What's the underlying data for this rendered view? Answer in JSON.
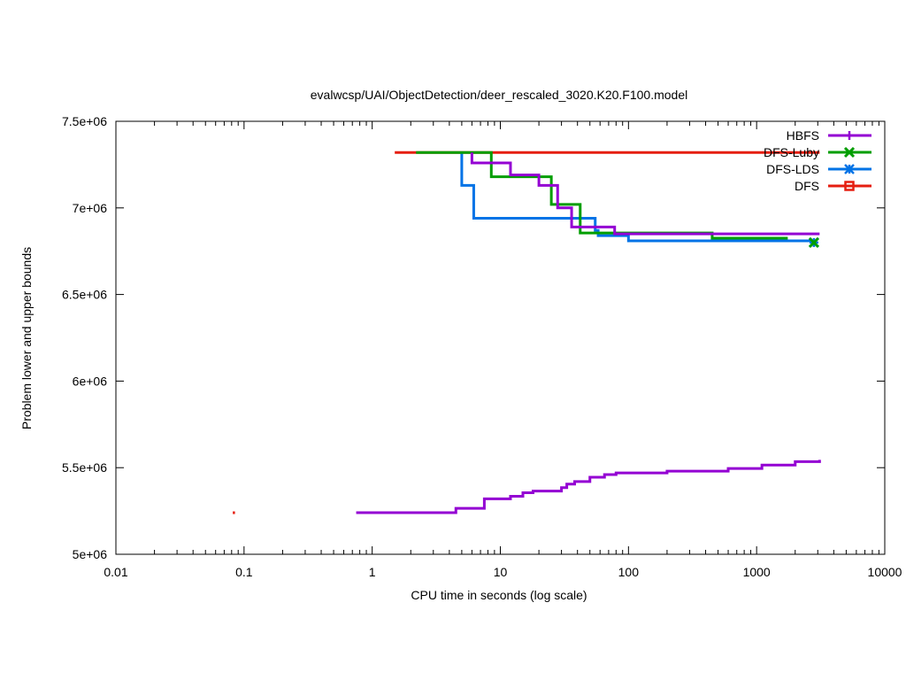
{
  "chart_data": {
    "type": "line",
    "title": "evalwcsp/UAI/ObjectDetection/deer_rescaled_3020.K20.F100.model",
    "xlabel": "CPU time in seconds (log scale)",
    "ylabel": "Problem lower and upper bounds",
    "xscale": "log",
    "xlim": [
      0.01,
      10000
    ],
    "ylim": [
      5000000,
      7500000
    ],
    "xticks": [
      0.01,
      0.1,
      1,
      10,
      100,
      1000,
      10000
    ],
    "xtick_labels": [
      "0.01",
      "0.1",
      "1",
      "10",
      "100",
      "1000",
      "10000"
    ],
    "yticks": [
      5000000,
      5500000,
      6000000,
      6500000,
      7000000,
      7500000
    ],
    "ytick_labels": [
      "5e+06",
      "5.5e+06",
      "6e+06",
      "6.5e+06",
      "7e+06",
      "7.5e+06"
    ],
    "grid": false,
    "legend_position": "top-right",
    "series": [
      {
        "name": "HBFS",
        "color": "#9400d3",
        "marker": "plus",
        "upper": [
          [
            6.0,
            7320000
          ],
          [
            6.0,
            7260000
          ],
          [
            12.0,
            7260000
          ],
          [
            12.0,
            7190000
          ],
          [
            20.0,
            7190000
          ],
          [
            20.0,
            7130000
          ],
          [
            28.0,
            7130000
          ],
          [
            28.0,
            7000000
          ],
          [
            36.0,
            7000000
          ],
          [
            36.0,
            6890000
          ],
          [
            78.0,
            6890000
          ],
          [
            78.0,
            6850000
          ],
          [
            3100,
            6850000
          ]
        ],
        "lower": [
          [
            0.75,
            5240000
          ],
          [
            4.5,
            5240000
          ],
          [
            4.5,
            5265000
          ],
          [
            7.5,
            5265000
          ],
          [
            7.5,
            5320000
          ],
          [
            12.0,
            5320000
          ],
          [
            12.0,
            5335000
          ],
          [
            15.0,
            5335000
          ],
          [
            15.0,
            5355000
          ],
          [
            18.0,
            5355000
          ],
          [
            18.0,
            5365000
          ],
          [
            30.0,
            5365000
          ],
          [
            30.0,
            5385000
          ],
          [
            33.0,
            5385000
          ],
          [
            33.0,
            5405000
          ],
          [
            38.0,
            5405000
          ],
          [
            38.0,
            5420000
          ],
          [
            50.0,
            5420000
          ],
          [
            50.0,
            5445000
          ],
          [
            65.0,
            5445000
          ],
          [
            65.0,
            5460000
          ],
          [
            80.0,
            5460000
          ],
          [
            80.0,
            5470000
          ],
          [
            200.0,
            5470000
          ],
          [
            200.0,
            5480000
          ],
          [
            600.0,
            5480000
          ],
          [
            600.0,
            5495000
          ],
          [
            1100.0,
            5495000
          ],
          [
            1100.0,
            5515000
          ],
          [
            2000.0,
            5515000
          ],
          [
            2000.0,
            5535000
          ],
          [
            3100.0,
            5535000
          ],
          [
            3100.0,
            5545000
          ]
        ],
        "lower_extra_point": [
          0.083,
          5240000
        ]
      },
      {
        "name": "DFS-Luby",
        "color": "#009e00",
        "marker": "x",
        "upper": [
          [
            2.2,
            7320000
          ],
          [
            8.5,
            7320000
          ],
          [
            8.5,
            7180000
          ],
          [
            25.0,
            7180000
          ],
          [
            25.0,
            7020000
          ],
          [
            42.0,
            7020000
          ],
          [
            42.0,
            6855000
          ],
          [
            450.0,
            6855000
          ],
          [
            450.0,
            6825000
          ],
          [
            1750,
            6825000
          ]
        ]
      },
      {
        "name": "DFS-LDS",
        "color": "#0073e6",
        "marker": "star",
        "upper": [
          [
            5.0,
            7320000
          ],
          [
            5.0,
            7130000
          ],
          [
            6.2,
            7130000
          ],
          [
            6.2,
            6940000
          ],
          [
            55.0,
            6940000
          ],
          [
            55.0,
            6870000
          ],
          [
            58.0,
            6870000
          ],
          [
            58.0,
            6840000
          ],
          [
            100.0,
            6840000
          ],
          [
            100.0,
            6810000
          ],
          [
            2800,
            6810000
          ]
        ],
        "final_marker": [
          2800,
          6800000
        ]
      },
      {
        "name": "DFS",
        "color": "#e51e10",
        "marker": "square",
        "upper": [
          [
            1.5,
            7320000
          ],
          [
            3100,
            7320000
          ]
        ]
      }
    ]
  }
}
